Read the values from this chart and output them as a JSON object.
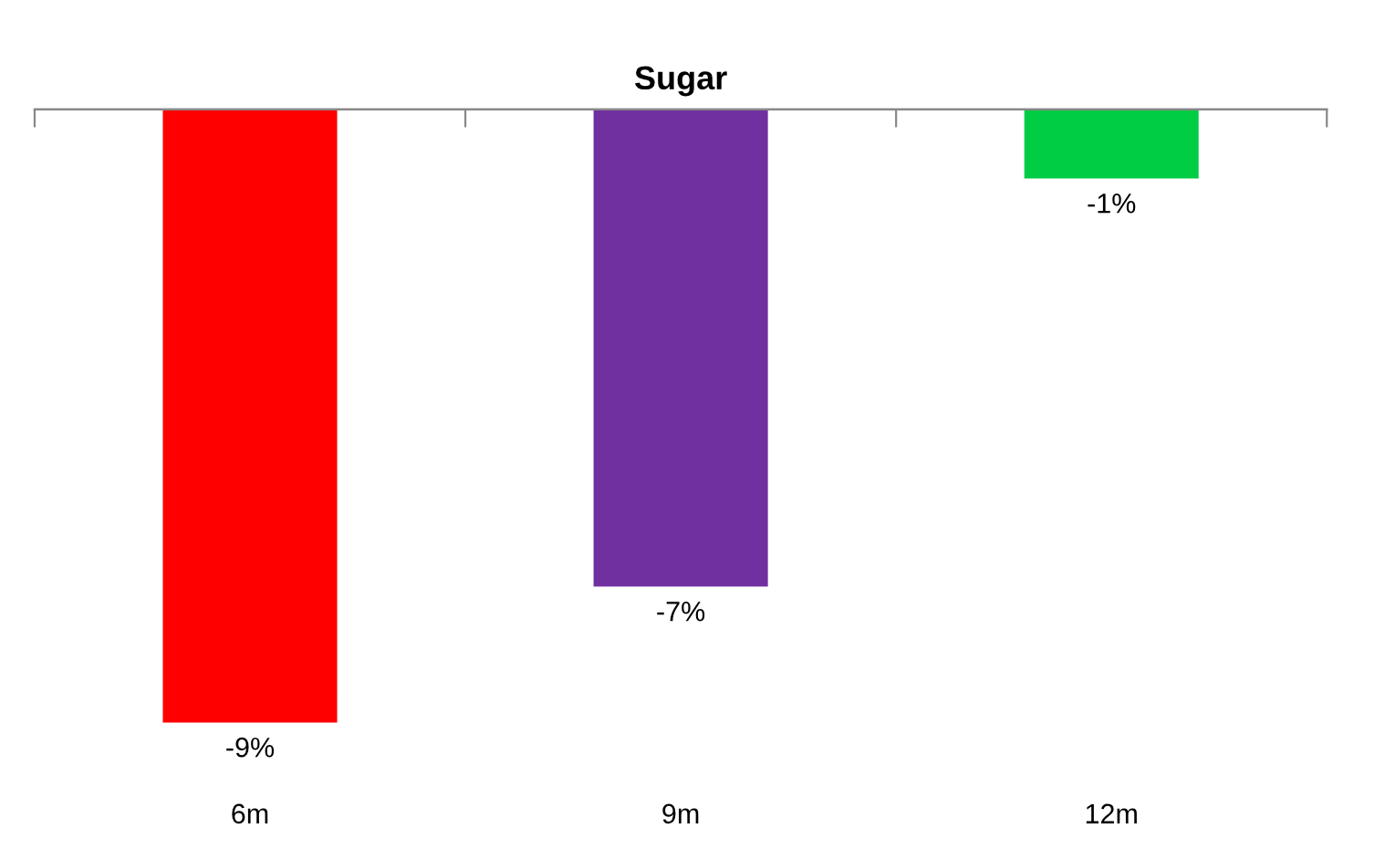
{
  "chart_data": {
    "type": "bar",
    "title": "Sugar",
    "categories": [
      "6m",
      "9m",
      "12m"
    ],
    "values": [
      -9,
      -7,
      -1
    ],
    "colors": [
      "#ff0000",
      "#7030a0",
      "#00cc44"
    ],
    "value_labels": [
      "-9%",
      "-7%",
      "-1%"
    ],
    "grid": false
  }
}
